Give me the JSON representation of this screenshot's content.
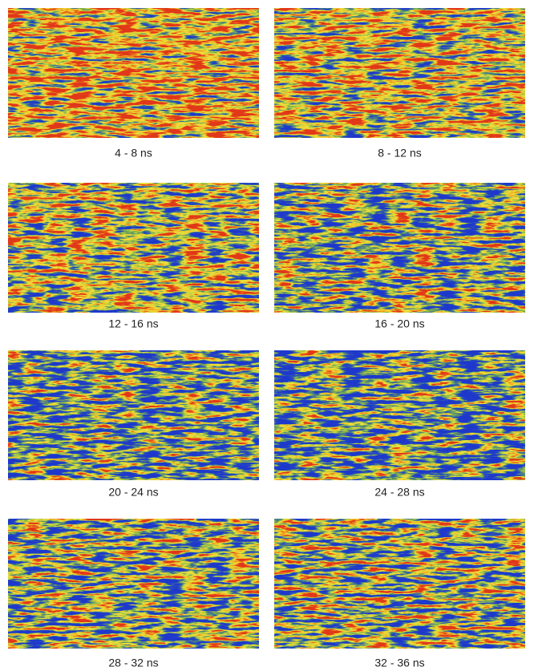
{
  "panels": [
    {
      "label": "4 - 8 ns"
    },
    {
      "label": "8 - 12 ns"
    },
    {
      "label": "12 - 16 ns"
    },
    {
      "label": "16 - 20 ns"
    },
    {
      "label": "20 - 24 ns"
    },
    {
      "label": "24 - 28 ns"
    },
    {
      "label": "28 - 32 ns"
    },
    {
      "label": "32 - 36 ns"
    }
  ]
}
